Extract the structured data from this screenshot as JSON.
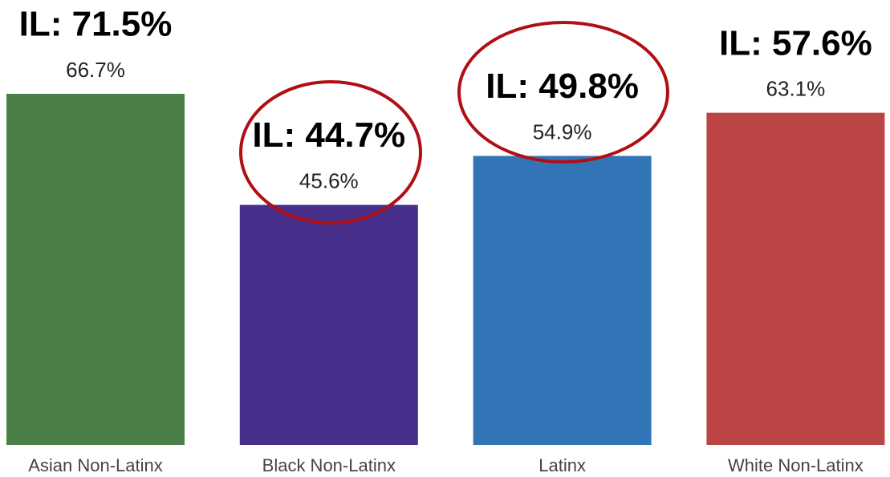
{
  "chart_data": {
    "type": "bar",
    "categories": [
      "Asian Non-Latinx",
      "Black Non-Latinx",
      "Latinx",
      "White Non-Latinx"
    ],
    "values": [
      66.7,
      45.6,
      54.9,
      63.1
    ],
    "value_labels": [
      "66.7%",
      "45.6%",
      "54.9%",
      "63.1%"
    ],
    "colors": [
      "#4a8048",
      "#482f8b",
      "#3275b7",
      "#bb4545"
    ],
    "annotations": [
      "IL: 71.5%",
      "IL: 44.7%",
      "IL: 49.8%",
      "IL: 57.6%"
    ]
  }
}
